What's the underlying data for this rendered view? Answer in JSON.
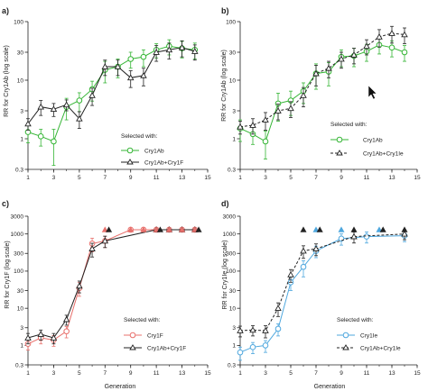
{
  "chart_data": [
    {
      "panel_label": "a)",
      "type": "line",
      "ylabel": "RR for Cry1Ab (log scale)",
      "xlabel": "",
      "xlim": [
        1,
        15
      ],
      "ylim": [
        0.3,
        100
      ],
      "yscale": "log",
      "x_ticks": [
        "1",
        "3",
        "5",
        "7",
        "9",
        "11",
        "13",
        "15"
      ],
      "y_ticks": [
        "0.3",
        "1",
        "3",
        "10",
        "30",
        "100"
      ],
      "grid": false,
      "legend_title": "Selected with:",
      "legend_position": "bottom-right",
      "series": [
        {
          "name": "Cry1Ab",
          "color": "#35b535",
          "marker": "circle",
          "dash": false,
          "x": [
            1,
            2,
            3,
            4,
            5,
            6,
            7,
            8,
            9,
            10,
            11,
            12,
            13,
            14
          ],
          "y": [
            1.3,
            1.1,
            0.9,
            3.5,
            4.5,
            7.0,
            15.0,
            17.0,
            23.0,
            25.0,
            33.0,
            38.0,
            35.0,
            33.0
          ],
          "err": [
            0.45,
            0.35,
            0.55,
            1.4,
            1.6,
            2.6,
            6.0,
            6.0,
            7.0,
            8.0,
            9.0,
            11.0,
            11.0,
            10.0
          ]
        },
        {
          "name": "Cry1Ab+Cry1F",
          "color": "#222222",
          "marker": "triangle",
          "dash": false,
          "x": [
            1,
            2,
            3,
            4,
            5,
            6,
            7,
            8,
            9,
            10,
            11,
            12,
            13,
            14
          ],
          "y": [
            1.8,
            3.5,
            3.2,
            3.8,
            2.2,
            5.5,
            17.0,
            17.0,
            11.0,
            12.0,
            30.0,
            33.0,
            36.0,
            31.0
          ],
          "err": [
            0.4,
            1.0,
            0.8,
            0.8,
            0.7,
            1.8,
            5.0,
            5.0,
            3.5,
            4.0,
            9.0,
            10.0,
            11.0,
            9.0
          ]
        }
      ]
    },
    {
      "panel_label": "b)",
      "type": "line",
      "ylabel": "RR for Cry1Ab (log scale)",
      "xlabel": "",
      "xlim": [
        1,
        15
      ],
      "ylim": [
        0.3,
        100
      ],
      "yscale": "log",
      "x_ticks": [
        "1",
        "3",
        "5",
        "7",
        "9",
        "11",
        "13",
        "15"
      ],
      "y_ticks": [
        "0.3",
        "1",
        "3",
        "10",
        "30",
        "100"
      ],
      "grid": false,
      "legend_title": "Selected with:",
      "legend_position": "bottom-right",
      "series": [
        {
          "name": "Cry1Ab",
          "color": "#35b535",
          "marker": "circle",
          "dash": false,
          "x": [
            1,
            2,
            3,
            4,
            5,
            6,
            7,
            8,
            9,
            10,
            11,
            12,
            13,
            14
          ],
          "y": [
            1.5,
            1.2,
            0.9,
            4.0,
            4.5,
            6.5,
            13.0,
            14.0,
            25.0,
            26.0,
            31.0,
            40.0,
            36.0,
            30.0
          ],
          "err": [
            0.6,
            0.4,
            0.45,
            2.0,
            2.0,
            2.5,
            6.0,
            6.0,
            8.0,
            9.0,
            10.0,
            12.0,
            11.0,
            9.0
          ]
        },
        {
          "name": "Cry1Ab+Cry1Ie",
          "color": "#222222",
          "marker": "triangle",
          "dash": true,
          "x": [
            1,
            2,
            3,
            4,
            5,
            6,
            7,
            8,
            9,
            10,
            11,
            12,
            13,
            14
          ],
          "y": [
            1.6,
            1.7,
            2.1,
            3.0,
            3.3,
            5.5,
            13.0,
            16.0,
            23.0,
            27.0,
            38.0,
            55.0,
            63.0,
            60.0
          ],
          "err": [
            0.4,
            0.5,
            0.7,
            0.9,
            1.0,
            2.0,
            5.0,
            5.0,
            7.0,
            8.0,
            11.0,
            18.0,
            20.0,
            18.0
          ]
        }
      ]
    },
    {
      "panel_label": "c)",
      "type": "line",
      "ylabel": "RR for Cry1F (log scale)",
      "xlabel": "Generation",
      "xlim": [
        1,
        15
      ],
      "ylim": [
        0.3,
        3000
      ],
      "yscale": "log",
      "x_ticks": [
        "1",
        "3",
        "5",
        "7",
        "9",
        "11",
        "13",
        "15"
      ],
      "y_ticks": [
        "0.3",
        "1",
        "3",
        "10",
        "30",
        "100",
        "300",
        "1000",
        "3000"
      ],
      "grid": false,
      "legend_title": "Selected with:",
      "legend_position": "bottom-right",
      "series": [
        {
          "name": "Cry1F",
          "color": "#e8706c",
          "marker": "circle",
          "dash": false,
          "x": [
            1,
            2,
            3,
            4,
            5,
            6,
            7,
            8,
            9,
            10,
            11,
            12,
            13,
            14
          ],
          "y": [
            1.1,
            1.6,
            1.4,
            2.4,
            35.0,
            550.0,
            650.0,
            null,
            1300.0,
            1300.0,
            1300.0,
            1300.0,
            1300.0,
            1300.0
          ],
          "err": [
            0.35,
            0.5,
            0.45,
            0.8,
            14.0,
            220.0,
            220.0,
            null,
            0,
            0,
            0,
            0,
            0,
            0
          ]
        },
        {
          "name": "Cry1Ab+Cry1F",
          "color": "#222222",
          "marker": "triangle",
          "dash": false,
          "x": [
            1,
            2,
            3,
            4,
            5,
            6,
            7,
            8,
            9,
            10,
            11,
            12,
            13,
            14
          ],
          "y": [
            1.6,
            2.0,
            1.6,
            5.0,
            40.0,
            400.0,
            650.0,
            null,
            null,
            null,
            1300.0,
            1300.0,
            1300.0,
            1300.0
          ],
          "err": [
            0.5,
            0.6,
            0.5,
            1.5,
            14.0,
            160.0,
            220.0,
            null,
            null,
            null,
            0,
            0,
            0,
            0
          ]
        }
      ],
      "censored_markers": [
        {
          "x": 7.0,
          "color": "#e8706c"
        },
        {
          "x": 7.3,
          "color": "#222222"
        },
        {
          "x": 9.0,
          "color": "#e8706c"
        },
        {
          "x": 10.0,
          "color": "#e8706c"
        },
        {
          "x": 11.0,
          "color": "#e8706c"
        },
        {
          "x": 11.3,
          "color": "#222222"
        },
        {
          "x": 12.0,
          "color": "#e8706c"
        },
        {
          "x": 13.0,
          "color": "#e8706c"
        },
        {
          "x": 14.0,
          "color": "#e8706c"
        },
        {
          "x": 14.3,
          "color": "#222222"
        }
      ]
    },
    {
      "panel_label": "d)",
      "type": "line",
      "ylabel": "RR for Cry1Ie (log scale)",
      "xlabel": "Generation",
      "xlim": [
        1,
        15
      ],
      "ylim": [
        0.3,
        3000
      ],
      "yscale": "log",
      "x_ticks": [
        "1",
        "3",
        "5",
        "7",
        "9",
        "11",
        "13",
        "15"
      ],
      "y_ticks": [
        "0.3",
        "1",
        "3",
        "10",
        "30",
        "100",
        "300",
        "1000",
        "3000"
      ],
      "grid": false,
      "legend_title": "Selected with:",
      "legend_position": "bottom-right",
      "series": [
        {
          "name": "Cry1Ie",
          "color": "#4ea7de",
          "marker": "circle",
          "dash": false,
          "x": [
            1,
            2,
            3,
            4,
            5,
            6,
            7,
            8,
            9,
            10,
            11,
            12,
            13,
            14
          ],
          "y": [
            0.65,
            0.9,
            1.0,
            2.8,
            50.0,
            130.0,
            350.0,
            null,
            750.0,
            null,
            850.0,
            null,
            null,
            900.0
          ],
          "err": [
            0.25,
            0.3,
            0.35,
            1.0,
            20.0,
            60.0,
            120.0,
            null,
            250.0,
            null,
            280.0,
            null,
            null,
            280.0
          ]
        },
        {
          "name": "Cry1Ab+Cry1Ie",
          "color": "#222222",
          "marker": "triangle",
          "dash": true,
          "x": [
            1,
            2,
            3,
            4,
            5,
            6,
            7,
            8,
            9,
            10,
            11,
            12,
            13,
            14
          ],
          "y": [
            2.5,
            2.6,
            2.5,
            10.0,
            80.0,
            350.0,
            400.0,
            null,
            null,
            850.0,
            null,
            null,
            null,
            1000.0
          ],
          "err": [
            0.8,
            0.8,
            0.9,
            4.0,
            30.0,
            130.0,
            140.0,
            null,
            null,
            280.0,
            null,
            null,
            null,
            300.0
          ]
        }
      ],
      "censored_markers": [
        {
          "x": 6.0,
          "color": "#222222"
        },
        {
          "x": 7.0,
          "color": "#4ea7de"
        },
        {
          "x": 7.3,
          "color": "#222222"
        },
        {
          "x": 9.0,
          "color": "#4ea7de"
        },
        {
          "x": 10.0,
          "color": "#222222"
        },
        {
          "x": 12.0,
          "color": "#4ea7de"
        },
        {
          "x": 12.3,
          "color": "#222222"
        },
        {
          "x": 14.0,
          "color": "#222222"
        }
      ]
    }
  ]
}
